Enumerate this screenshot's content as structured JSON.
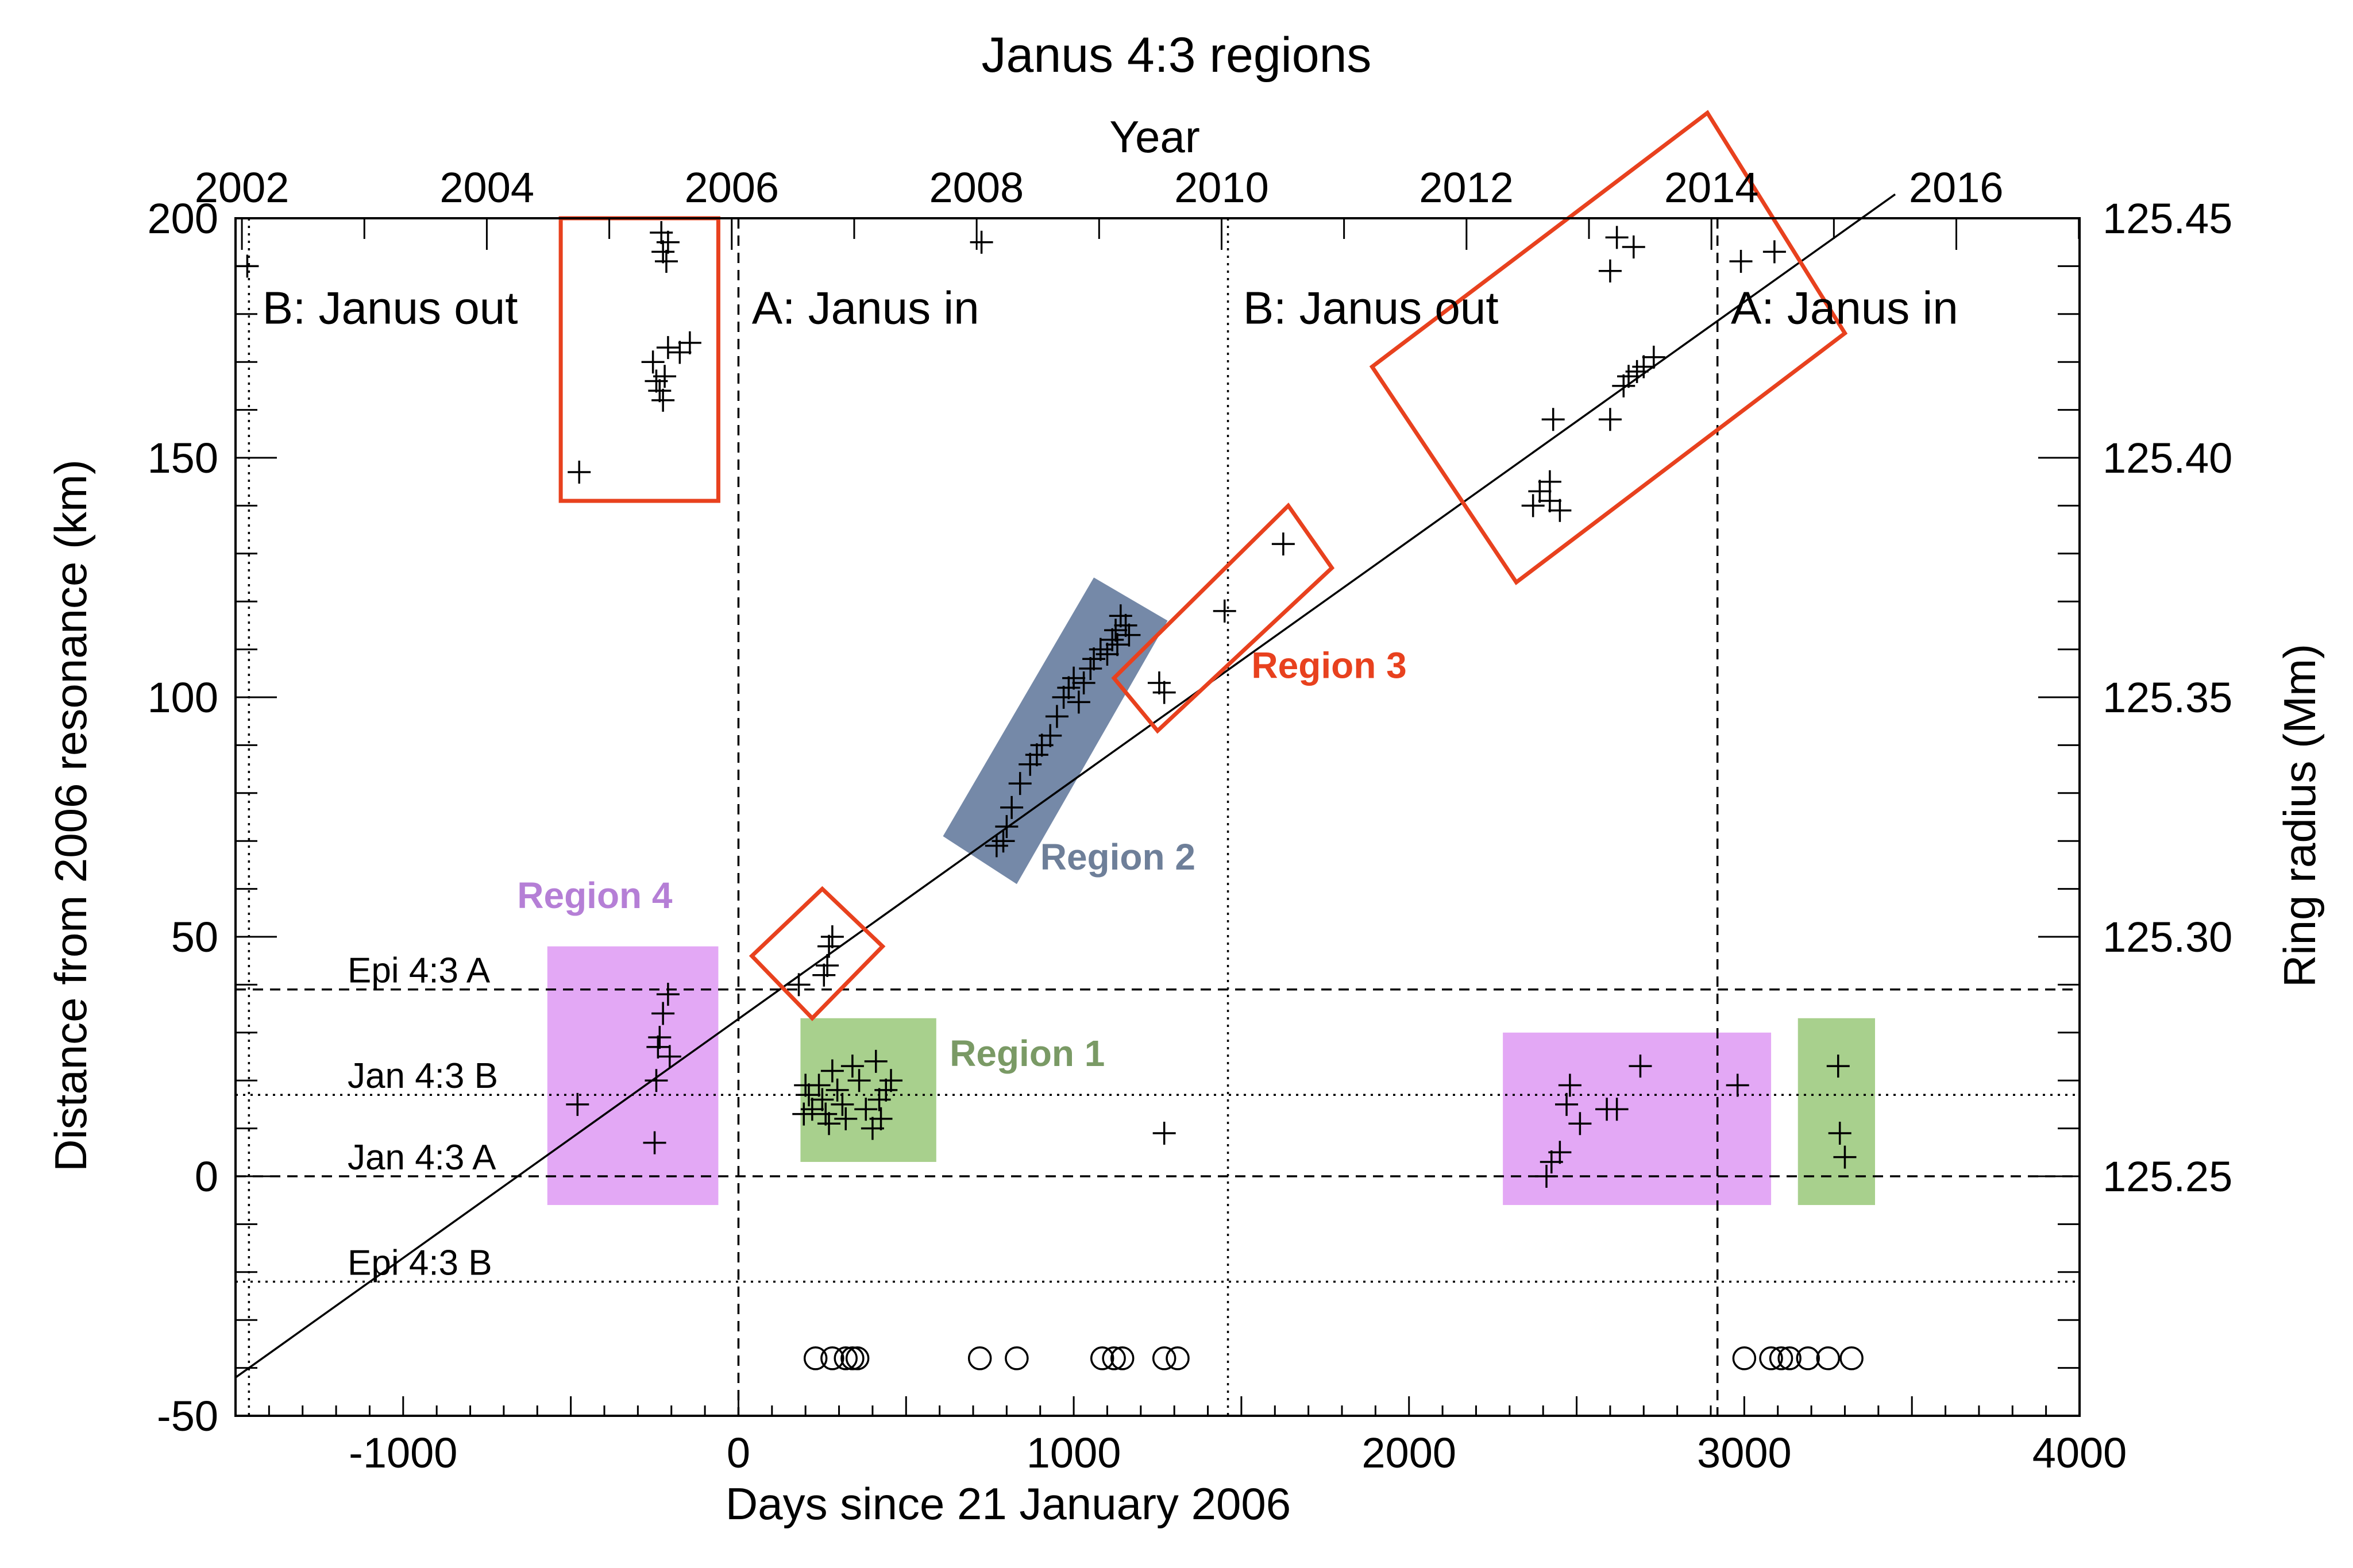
{
  "chart_data": {
    "type": "scatter",
    "title": "Janus 4:3 regions",
    "xlabel": "Days since 21 January 2006",
    "ylabel": "Distance from 2006 resonance (km)",
    "top_xlabel": "Year",
    "right_ylabel": "Ring radius (Mm)",
    "xlim": [
      -1500,
      4000
    ],
    "ylim": [
      -50,
      200
    ],
    "x_ticks": [
      -1000,
      0,
      1000,
      2000,
      3000,
      4000
    ],
    "y_ticks": [
      -50,
      0,
      50,
      100,
      150,
      200
    ],
    "top_ticks": [
      {
        "label": "2002",
        "day": -1481
      },
      {
        "label": "2004",
        "day": -750
      },
      {
        "label": "2006",
        "day": -20
      },
      {
        "label": "2008",
        "day": 710
      },
      {
        "label": "2010",
        "day": 1441
      },
      {
        "label": "2012",
        "day": 2171
      },
      {
        "label": "2014",
        "day": 2902
      },
      {
        "label": "2016",
        "day": 3632
      }
    ],
    "right_ticks": [
      {
        "label": "125.25",
        "km": 0
      },
      {
        "label": "125.30",
        "km": 50
      },
      {
        "label": "125.35",
        "km": 100
      },
      {
        "label": "125.40",
        "km": 150
      },
      {
        "label": "125.45",
        "km": 200
      }
    ],
    "trend_line": {
      "x": [
        -1500,
        3450
      ],
      "y": [
        -42,
        205
      ]
    },
    "hlines": [
      {
        "label": "Epi 4:3 A",
        "y": 39,
        "style": "dashed"
      },
      {
        "label": "Jan 4:3 B",
        "y": 17,
        "style": "dotted"
      },
      {
        "label": "Jan 4:3 A",
        "y": 0,
        "style": "dashed"
      },
      {
        "label": "Epi 4:3 B",
        "y": -22,
        "style": "dotted"
      }
    ],
    "vlines": [
      {
        "x": 0,
        "style": "dashed"
      },
      {
        "x": 1460,
        "style": "dotted"
      },
      {
        "x": 2920,
        "style": "dashed"
      },
      {
        "x": -1460,
        "style": "dotted"
      }
    ],
    "period_labels": [
      {
        "text": "B: Janus out",
        "x": -1420,
        "y": 178
      },
      {
        "text": "A: Janus in",
        "x": 40,
        "y": 178
      },
      {
        "text": "B: Janus out",
        "x": 1505,
        "y": 178
      },
      {
        "text": "A: Janus in",
        "x": 2960,
        "y": 178
      }
    ],
    "regions": [
      {
        "name": "Region 1",
        "color": "#a8d08d",
        "label_color": "#7a9a65",
        "label_pos": [
          630,
          23
        ]
      },
      {
        "name": "Region 2",
        "color": "#7589a8",
        "label_color": "#6e7f99",
        "label_pos": [
          900,
          64
        ]
      },
      {
        "name": "Region 3",
        "color": "#e8411e",
        "label_color": "#e8411e",
        "label_pos": [
          1530,
          104
        ]
      },
      {
        "name": "Region 4",
        "color": "#e3a8f5",
        "label_color": "#b57fd6",
        "label_pos": [
          -660,
          56
        ]
      }
    ],
    "points": [
      [
        -1465,
        190
      ],
      [
        -475,
        147
      ],
      [
        -255,
        170
      ],
      [
        -245,
        166
      ],
      [
        -235,
        164
      ],
      [
        -225,
        162
      ],
      [
        -220,
        167
      ],
      [
        -210,
        173
      ],
      [
        -175,
        172
      ],
      [
        -145,
        174
      ],
      [
        -230,
        197
      ],
      [
        -225,
        193
      ],
      [
        -215,
        191
      ],
      [
        -210,
        195
      ],
      [
        -480,
        15
      ],
      [
        -250,
        7
      ],
      [
        -245,
        20
      ],
      [
        -240,
        27
      ],
      [
        -235,
        29
      ],
      [
        -225,
        34
      ],
      [
        -210,
        38
      ],
      [
        -205,
        25
      ],
      [
        180,
        40
      ],
      [
        255,
        42
      ],
      [
        265,
        44
      ],
      [
        270,
        48
      ],
      [
        280,
        50
      ],
      [
        195,
        13
      ],
      [
        200,
        19
      ],
      [
        210,
        17
      ],
      [
        220,
        14
      ],
      [
        240,
        19
      ],
      [
        250,
        16
      ],
      [
        260,
        13
      ],
      [
        270,
        11
      ],
      [
        280,
        22
      ],
      [
        295,
        18
      ],
      [
        310,
        15
      ],
      [
        320,
        12
      ],
      [
        340,
        23
      ],
      [
        360,
        20
      ],
      [
        380,
        14
      ],
      [
        400,
        10
      ],
      [
        410,
        24
      ],
      [
        425,
        12
      ],
      [
        440,
        18
      ],
      [
        455,
        20
      ],
      [
        420,
        16
      ],
      [
        770,
        69
      ],
      [
        790,
        70
      ],
      [
        800,
        73
      ],
      [
        815,
        77
      ],
      [
        840,
        82
      ],
      [
        870,
        86
      ],
      [
        890,
        88
      ],
      [
        905,
        90
      ],
      [
        930,
        92
      ],
      [
        950,
        96
      ],
      [
        970,
        100
      ],
      [
        985,
        102
      ],
      [
        1000,
        104
      ],
      [
        1015,
        99
      ],
      [
        1030,
        103
      ],
      [
        1050,
        106
      ],
      [
        1060,
        108
      ],
      [
        1080,
        110
      ],
      [
        1100,
        109
      ],
      [
        1115,
        112
      ],
      [
        1125,
        114
      ],
      [
        1140,
        117
      ],
      [
        1155,
        115
      ],
      [
        1165,
        113
      ],
      [
        1130,
        111
      ],
      [
        1270,
        101
      ],
      [
        1255,
        103
      ],
      [
        1450,
        118
      ],
      [
        1625,
        132
      ],
      [
        725,
        195
      ],
      [
        1270,
        9
      ],
      [
        2370,
        140
      ],
      [
        2390,
        143
      ],
      [
        2420,
        145
      ],
      [
        2450,
        139
      ],
      [
        2430,
        158
      ],
      [
        2420,
        141
      ],
      [
        2600,
        158
      ],
      [
        2640,
        165
      ],
      [
        2655,
        167
      ],
      [
        2680,
        168
      ],
      [
        2700,
        169
      ],
      [
        2730,
        171
      ],
      [
        2600,
        189
      ],
      [
        2620,
        196
      ],
      [
        2670,
        194
      ],
      [
        2990,
        191
      ],
      [
        3090,
        193
      ],
      [
        2410,
        0
      ],
      [
        2425,
        3
      ],
      [
        2450,
        5
      ],
      [
        2470,
        15
      ],
      [
        2480,
        19
      ],
      [
        2510,
        11
      ],
      [
        2590,
        14
      ],
      [
        2620,
        14
      ],
      [
        2690,
        23
      ],
      [
        2980,
        19
      ],
      [
        3280,
        23
      ],
      [
        3285,
        9
      ],
      [
        3300,
        4
      ]
    ],
    "circles": [
      230,
      280,
      320,
      340,
      355,
      720,
      830,
      1085,
      1120,
      1145,
      1270,
      1310,
      3000,
      3080,
      3110,
      3135,
      3190,
      3250,
      3320
    ]
  }
}
